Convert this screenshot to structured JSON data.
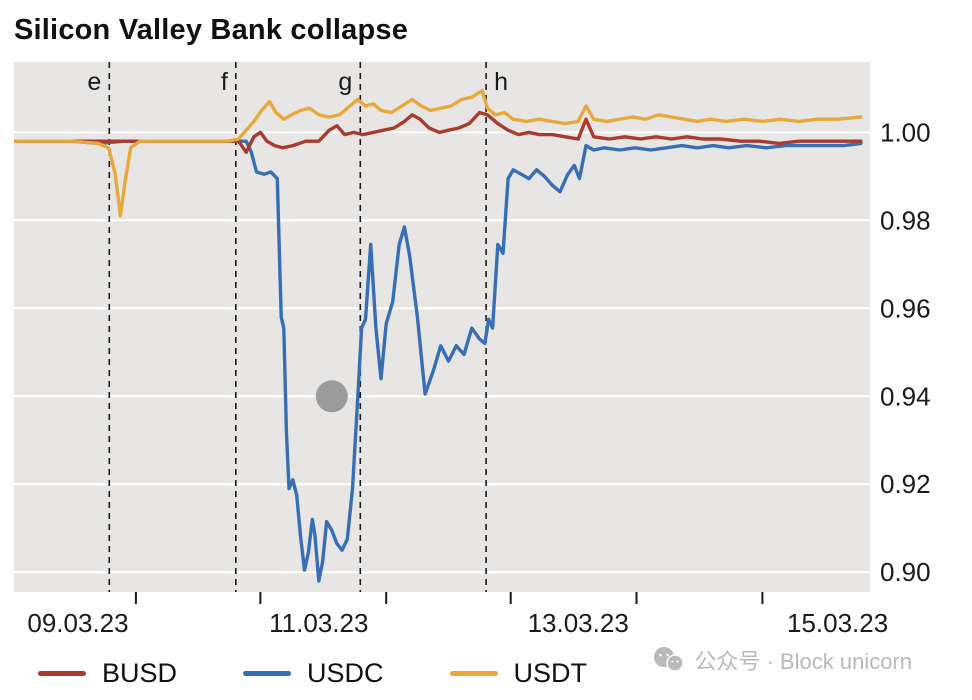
{
  "watermark": {
    "text": "公众号 · Block unicorn"
  },
  "chart_data": {
    "type": "line",
    "title": "Silicon Valley Bank collapse",
    "colors": {
      "plot_bg": "#e7e6e5",
      "gridline": "#ffffff",
      "text": "#1a1a1a"
    },
    "x_axis": {
      "unit": "date",
      "tick_labels": [
        "09.03.23",
        "11.03.23",
        "13.03.23",
        "15.03.23"
      ],
      "tick_positions": [
        0,
        2,
        4,
        6
      ],
      "minor_tick_positions": [
        0.59,
        1.55,
        2.52,
        3.48,
        4.45,
        5.42
      ],
      "range": [
        -0.35,
        6.25
      ]
    },
    "y_axis": {
      "side": "right",
      "tick_labels": [
        "1.00",
        "0.98",
        "0.96",
        "0.94",
        "0.92",
        "0.90"
      ],
      "tick_values": [
        1.0,
        0.98,
        0.96,
        0.94,
        0.92,
        0.9
      ],
      "range": [
        0.8955,
        1.016
      ]
    },
    "event_lines": [
      {
        "label": "e",
        "x": 0.385,
        "label_side": "left"
      },
      {
        "label": "f",
        "x": 1.36,
        "label_side": "left"
      },
      {
        "label": "g",
        "x": 2.32,
        "label_side": "left"
      },
      {
        "label": "h",
        "x": 3.29,
        "label_side": "right"
      }
    ],
    "annotation_circle": {
      "x": 2.1,
      "y": 0.94,
      "radius_px": 16,
      "color": "#9b9b9b"
    },
    "legend_position": "bottom",
    "grid": "horizontal",
    "series": [
      {
        "name": "BUSD",
        "color": "#a93a2c",
        "points": [
          [
            -0.35,
            0.998
          ],
          [
            0.3,
            0.998
          ],
          [
            0.7,
            0.998
          ],
          [
            1.1,
            0.998
          ],
          [
            1.38,
            0.998
          ],
          [
            1.44,
            0.9955
          ],
          [
            1.5,
            0.999
          ],
          [
            1.55,
            1.0
          ],
          [
            1.6,
            0.998
          ],
          [
            1.66,
            0.997
          ],
          [
            1.72,
            0.9965
          ],
          [
            1.8,
            0.997
          ],
          [
            1.9,
            0.998
          ],
          [
            2.0,
            0.998
          ],
          [
            2.08,
            1.0005
          ],
          [
            2.14,
            1.0015
          ],
          [
            2.2,
            0.9995
          ],
          [
            2.27,
            1.0
          ],
          [
            2.34,
            0.9995
          ],
          [
            2.42,
            1.0
          ],
          [
            2.5,
            1.0005
          ],
          [
            2.58,
            1.001
          ],
          [
            2.66,
            1.0025
          ],
          [
            2.72,
            1.004
          ],
          [
            2.78,
            1.003
          ],
          [
            2.85,
            1.001
          ],
          [
            2.93,
            1.0
          ],
          [
            3.0,
            1.0005
          ],
          [
            3.08,
            1.001
          ],
          [
            3.16,
            1.002
          ],
          [
            3.24,
            1.0045
          ],
          [
            3.3,
            1.004
          ],
          [
            3.38,
            1.002
          ],
          [
            3.46,
            1.0005
          ],
          [
            3.54,
            0.9995
          ],
          [
            3.62,
            1.0
          ],
          [
            3.7,
            0.9995
          ],
          [
            3.8,
            0.9995
          ],
          [
            3.9,
            0.999
          ],
          [
            4.0,
            0.9985
          ],
          [
            4.06,
            1.003
          ],
          [
            4.12,
            0.999
          ],
          [
            4.24,
            0.9985
          ],
          [
            4.36,
            0.999
          ],
          [
            4.48,
            0.9985
          ],
          [
            4.6,
            0.999
          ],
          [
            4.72,
            0.9985
          ],
          [
            4.84,
            0.999
          ],
          [
            4.96,
            0.9985
          ],
          [
            5.1,
            0.9985
          ],
          [
            5.25,
            0.998
          ],
          [
            5.4,
            0.998
          ],
          [
            5.55,
            0.9975
          ],
          [
            5.7,
            0.998
          ],
          [
            5.85,
            0.998
          ],
          [
            6.0,
            0.998
          ],
          [
            6.18,
            0.998
          ]
        ]
      },
      {
        "name": "USDC",
        "color": "#376eb5",
        "points": [
          [
            -0.35,
            0.998
          ],
          [
            0.1,
            0.998
          ],
          [
            0.3,
            0.9975
          ],
          [
            0.5,
            0.998
          ],
          [
            0.8,
            0.998
          ],
          [
            1.1,
            0.998
          ],
          [
            1.3,
            0.998
          ],
          [
            1.44,
            0.998
          ],
          [
            1.48,
            0.9955
          ],
          [
            1.52,
            0.991
          ],
          [
            1.58,
            0.9905
          ],
          [
            1.63,
            0.991
          ],
          [
            1.68,
            0.9895
          ],
          [
            1.71,
            0.958
          ],
          [
            1.73,
            0.9555
          ],
          [
            1.75,
            0.932
          ],
          [
            1.77,
            0.919
          ],
          [
            1.8,
            0.921
          ],
          [
            1.83,
            0.9175
          ],
          [
            1.86,
            0.908
          ],
          [
            1.89,
            0.9005
          ],
          [
            1.92,
            0.9045
          ],
          [
            1.95,
            0.912
          ],
          [
            1.97,
            0.9085
          ],
          [
            2.0,
            0.898
          ],
          [
            2.03,
            0.9025
          ],
          [
            2.06,
            0.9115
          ],
          [
            2.1,
            0.9095
          ],
          [
            2.14,
            0.9065
          ],
          [
            2.18,
            0.905
          ],
          [
            2.22,
            0.9075
          ],
          [
            2.26,
            0.919
          ],
          [
            2.3,
            0.9395
          ],
          [
            2.33,
            0.9555
          ],
          [
            2.36,
            0.9575
          ],
          [
            2.4,
            0.9745
          ],
          [
            2.44,
            0.9555
          ],
          [
            2.48,
            0.944
          ],
          [
            2.52,
            0.9565
          ],
          [
            2.57,
            0.9615
          ],
          [
            2.62,
            0.9745
          ],
          [
            2.66,
            0.9785
          ],
          [
            2.7,
            0.972
          ],
          [
            2.76,
            0.958
          ],
          [
            2.82,
            0.9405
          ],
          [
            2.88,
            0.9455
          ],
          [
            2.94,
            0.9515
          ],
          [
            3.0,
            0.948
          ],
          [
            3.06,
            0.9515
          ],
          [
            3.12,
            0.9495
          ],
          [
            3.18,
            0.9555
          ],
          [
            3.24,
            0.953
          ],
          [
            3.28,
            0.952
          ],
          [
            3.31,
            0.9575
          ],
          [
            3.34,
            0.9555
          ],
          [
            3.38,
            0.9745
          ],
          [
            3.42,
            0.9725
          ],
          [
            3.46,
            0.9895
          ],
          [
            3.5,
            0.9915
          ],
          [
            3.56,
            0.9905
          ],
          [
            3.62,
            0.9895
          ],
          [
            3.68,
            0.9915
          ],
          [
            3.74,
            0.99
          ],
          [
            3.8,
            0.988
          ],
          [
            3.86,
            0.9865
          ],
          [
            3.92,
            0.9905
          ],
          [
            3.97,
            0.9925
          ],
          [
            4.01,
            0.9895
          ],
          [
            4.06,
            0.997
          ],
          [
            4.12,
            0.996
          ],
          [
            4.2,
            0.9965
          ],
          [
            4.32,
            0.996
          ],
          [
            4.44,
            0.9965
          ],
          [
            4.56,
            0.996
          ],
          [
            4.68,
            0.9965
          ],
          [
            4.8,
            0.997
          ],
          [
            4.92,
            0.9965
          ],
          [
            5.04,
            0.997
          ],
          [
            5.16,
            0.9965
          ],
          [
            5.3,
            0.997
          ],
          [
            5.45,
            0.9965
          ],
          [
            5.6,
            0.997
          ],
          [
            5.75,
            0.997
          ],
          [
            5.9,
            0.997
          ],
          [
            6.05,
            0.997
          ],
          [
            6.18,
            0.9975
          ]
        ]
      },
      {
        "name": "USDT",
        "color": "#e9a83c",
        "points": [
          [
            -0.35,
            0.998
          ],
          [
            0.1,
            0.998
          ],
          [
            0.3,
            0.9975
          ],
          [
            0.38,
            0.9965
          ],
          [
            0.43,
            0.9905
          ],
          [
            0.47,
            0.981
          ],
          [
            0.51,
            0.9895
          ],
          [
            0.55,
            0.9965
          ],
          [
            0.62,
            0.998
          ],
          [
            0.85,
            0.998
          ],
          [
            1.1,
            0.998
          ],
          [
            1.3,
            0.998
          ],
          [
            1.38,
            0.9985
          ],
          [
            1.44,
            1.0005
          ],
          [
            1.5,
            1.0025
          ],
          [
            1.56,
            1.005
          ],
          [
            1.62,
            1.007
          ],
          [
            1.67,
            1.0045
          ],
          [
            1.73,
            1.003
          ],
          [
            1.79,
            1.004
          ],
          [
            1.86,
            1.005
          ],
          [
            1.93,
            1.0055
          ],
          [
            2.0,
            1.004
          ],
          [
            2.08,
            1.0035
          ],
          [
            2.16,
            1.004
          ],
          [
            2.24,
            1.006
          ],
          [
            2.3,
            1.0075
          ],
          [
            2.36,
            1.006
          ],
          [
            2.42,
            1.0065
          ],
          [
            2.48,
            1.005
          ],
          [
            2.56,
            1.0045
          ],
          [
            2.64,
            1.006
          ],
          [
            2.72,
            1.0075
          ],
          [
            2.79,
            1.006
          ],
          [
            2.86,
            1.005
          ],
          [
            2.94,
            1.0055
          ],
          [
            3.02,
            1.006
          ],
          [
            3.1,
            1.0075
          ],
          [
            3.18,
            1.008
          ],
          [
            3.26,
            1.0095
          ],
          [
            3.3,
            1.0055
          ],
          [
            3.36,
            1.004
          ],
          [
            3.43,
            1.0045
          ],
          [
            3.5,
            1.003
          ],
          [
            3.6,
            1.0025
          ],
          [
            3.7,
            1.003
          ],
          [
            3.8,
            1.0025
          ],
          [
            3.9,
            1.002
          ],
          [
            4.0,
            1.0025
          ],
          [
            4.06,
            1.006
          ],
          [
            4.12,
            1.003
          ],
          [
            4.22,
            1.0025
          ],
          [
            4.32,
            1.003
          ],
          [
            4.42,
            1.0035
          ],
          [
            4.52,
            1.003
          ],
          [
            4.62,
            1.004
          ],
          [
            4.72,
            1.0035
          ],
          [
            4.82,
            1.003
          ],
          [
            4.92,
            1.0025
          ],
          [
            5.02,
            1.003
          ],
          [
            5.14,
            1.0025
          ],
          [
            5.28,
            1.003
          ],
          [
            5.42,
            1.0025
          ],
          [
            5.56,
            1.003
          ],
          [
            5.7,
            1.0025
          ],
          [
            5.85,
            1.003
          ],
          [
            6.0,
            1.003
          ],
          [
            6.18,
            1.0035
          ]
        ]
      }
    ]
  }
}
